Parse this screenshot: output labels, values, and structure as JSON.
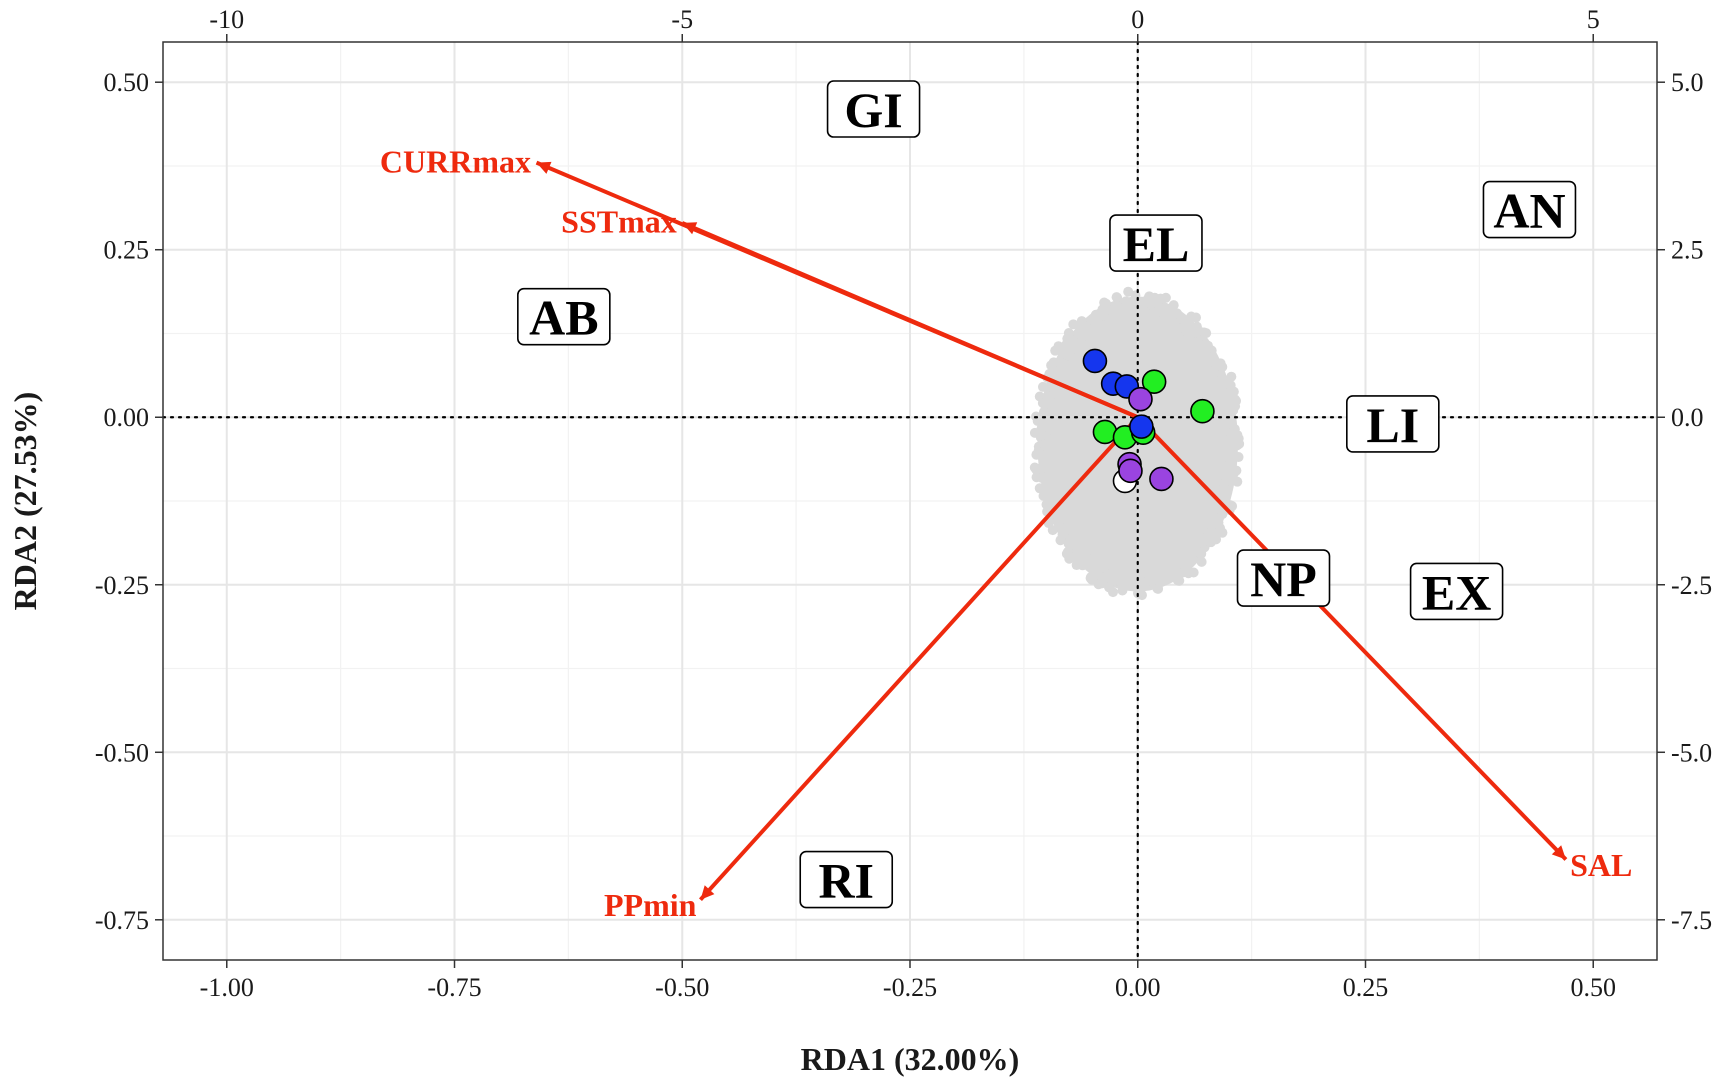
{
  "chart_data": {
    "type": "scatter",
    "xlabel": "RDA1 (32.00%)",
    "ylabel": "RDA2 (27.53%)",
    "xlim": [
      -1.07,
      0.57
    ],
    "ylim": [
      -0.81,
      0.56
    ],
    "x_ticks": [
      {
        "value": -1.0,
        "label": "-1.00"
      },
      {
        "value": -0.75,
        "label": "-0.75"
      },
      {
        "value": -0.5,
        "label": "-0.50"
      },
      {
        "value": -0.25,
        "label": "-0.25"
      },
      {
        "value": 0.0,
        "label": "0.00"
      },
      {
        "value": 0.25,
        "label": "0.25"
      },
      {
        "value": 0.5,
        "label": "0.50"
      }
    ],
    "y_ticks": [
      {
        "value": 0.5,
        "label": "0.50"
      },
      {
        "value": 0.25,
        "label": "0.25"
      },
      {
        "value": 0.0,
        "label": "0.00"
      },
      {
        "value": -0.25,
        "label": "-0.25"
      },
      {
        "value": -0.5,
        "label": "-0.50"
      },
      {
        "value": -0.75,
        "label": "-0.75"
      }
    ],
    "top_axis_ticks": [
      {
        "value": -10,
        "label": "-10"
      },
      {
        "value": -5,
        "label": "-5"
      },
      {
        "value": 0,
        "label": "0"
      },
      {
        "value": 5,
        "label": "5"
      }
    ],
    "top_axis_scale": 0.1,
    "right_axis_ticks": [
      {
        "value": 5.0,
        "label": "5.0"
      },
      {
        "value": 2.5,
        "label": "2.5"
      },
      {
        "value": 0.0,
        "label": "0.0"
      },
      {
        "value": -2.5,
        "label": "-2.5"
      },
      {
        "value": -5.0,
        "label": "-5.0"
      },
      {
        "value": -7.5,
        "label": "-7.5"
      }
    ],
    "right_axis_scale": 0.1,
    "grid": true,
    "zero_lines": "dotted",
    "cloud": {
      "center": [
        0.0,
        -0.04
      ],
      "radius_x": 0.11,
      "radius_y": 0.22,
      "color": "#d9d9d9"
    },
    "vectors": [
      {
        "label": "CURRmax",
        "x": -0.66,
        "y": 0.38
      },
      {
        "label": "SSTmax",
        "x": -0.5,
        "y": 0.29
      },
      {
        "label": "PPmin",
        "x": -0.48,
        "y": -0.72
      },
      {
        "label": "SAL",
        "x": 0.47,
        "y": -0.66
      }
    ],
    "vector_color": "#ee2a0e",
    "regions": [
      {
        "label": "GI",
        "x": -0.29,
        "y": 0.46
      },
      {
        "label": "AN",
        "x": 0.43,
        "y": 0.31
      },
      {
        "label": "EL",
        "x": 0.02,
        "y": 0.26
      },
      {
        "label": "AB",
        "x": -0.63,
        "y": 0.15
      },
      {
        "label": "LI",
        "x": 0.28,
        "y": -0.01
      },
      {
        "label": "NP",
        "x": 0.16,
        "y": -0.24
      },
      {
        "label": "EX",
        "x": 0.35,
        "y": -0.26
      },
      {
        "label": "RI",
        "x": -0.32,
        "y": -0.69
      }
    ],
    "points": [
      {
        "x": -0.047,
        "y": 0.084,
        "color": "#1536ee"
      },
      {
        "x": -0.027,
        "y": 0.05,
        "color": "#1536ee"
      },
      {
        "x": -0.012,
        "y": 0.046,
        "color": "#1536ee"
      },
      {
        "x": 0.018,
        "y": 0.053,
        "color": "#22ee22"
      },
      {
        "x": 0.071,
        "y": 0.009,
        "color": "#22ee22"
      },
      {
        "x": 0.003,
        "y": 0.027,
        "color": "#9a44e0"
      },
      {
        "x": -0.036,
        "y": -0.022,
        "color": "#22ee22"
      },
      {
        "x": -0.014,
        "y": -0.03,
        "color": "#22ee22"
      },
      {
        "x": 0.006,
        "y": -0.023,
        "color": "#22ee22"
      },
      {
        "x": 0.004,
        "y": -0.014,
        "color": "#1536ee"
      },
      {
        "x": 0.026,
        "y": -0.092,
        "color": "#9a44e0"
      },
      {
        "x": -0.009,
        "y": -0.07,
        "color": "#9a44e0"
      },
      {
        "x": -0.014,
        "y": -0.095,
        "color": "#ffffff"
      },
      {
        "x": -0.008,
        "y": -0.08,
        "color": "#9a44e0"
      }
    ]
  }
}
